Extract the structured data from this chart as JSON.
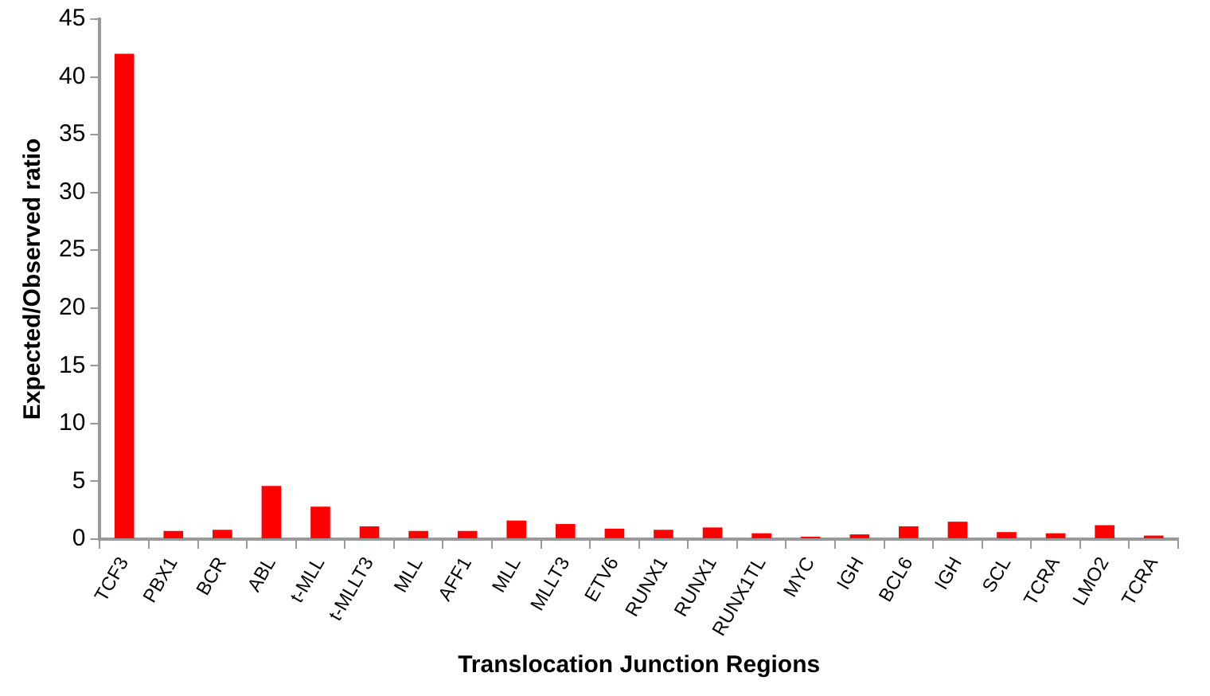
{
  "chart_data": {
    "type": "bar",
    "xlabel": "Translocation Junction Regions",
    "ylabel": "Expected/Observed ratio",
    "categories": [
      "TCF3",
      "PBX1",
      "BCR",
      "ABL",
      "t-MLL",
      "t-MLLT3",
      "MLL",
      "AFF1",
      "MLL",
      "MLLT3",
      "ETV6",
      "RUNX1",
      "RUNX1",
      "RUNX1TL",
      "MYC",
      "IGH",
      "BCL6",
      "IGH",
      "SCL",
      "TCRA",
      "LMO2",
      "TCRA"
    ],
    "values": [
      42,
      0.7,
      0.8,
      4.6,
      2.8,
      1.1,
      0.7,
      0.7,
      1.6,
      1.3,
      0.9,
      0.8,
      1.0,
      0.5,
      0.2,
      0.4,
      1.1,
      1.5,
      0.6,
      0.5,
      1.2,
      0.3
    ],
    "color": "#ff0000",
    "ylim": [
      0,
      45
    ],
    "yticks": [
      0,
      5,
      10,
      15,
      20,
      25,
      30,
      35,
      40,
      45
    ],
    "grid": false,
    "legend": false
  }
}
